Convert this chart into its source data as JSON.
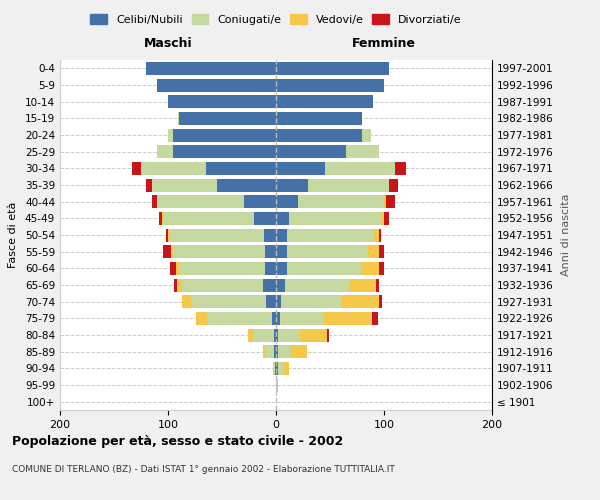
{
  "age_groups": [
    "100+",
    "95-99",
    "90-94",
    "85-89",
    "80-84",
    "75-79",
    "70-74",
    "65-69",
    "60-64",
    "55-59",
    "50-54",
    "45-49",
    "40-44",
    "35-39",
    "30-34",
    "25-29",
    "20-24",
    "15-19",
    "10-14",
    "5-9",
    "0-4"
  ],
  "birth_years": [
    "≤ 1901",
    "1902-1906",
    "1907-1911",
    "1912-1916",
    "1917-1921",
    "1922-1926",
    "1927-1931",
    "1932-1936",
    "1937-1941",
    "1942-1946",
    "1947-1951",
    "1952-1956",
    "1957-1961",
    "1962-1966",
    "1967-1971",
    "1972-1976",
    "1977-1981",
    "1982-1986",
    "1987-1991",
    "1992-1996",
    "1997-2001"
  ],
  "males": {
    "celibi": [
      0,
      0,
      1,
      2,
      2,
      4,
      9,
      12,
      10,
      10,
      11,
      20,
      30,
      55,
      65,
      95,
      95,
      90,
      100,
      110,
      120
    ],
    "coniugati": [
      0,
      0,
      2,
      8,
      18,
      60,
      70,
      75,
      80,
      85,
      88,
      85,
      80,
      60,
      60,
      15,
      5,
      1,
      0,
      0,
      0
    ],
    "vedovi": [
      0,
      0,
      0,
      2,
      6,
      10,
      8,
      5,
      3,
      2,
      1,
      1,
      0,
      0,
      0,
      0,
      0,
      0,
      0,
      0,
      0
    ],
    "divorziati": [
      0,
      0,
      0,
      0,
      0,
      0,
      0,
      2,
      5,
      8,
      2,
      2,
      5,
      5,
      8,
      0,
      0,
      0,
      0,
      0,
      0
    ]
  },
  "females": {
    "nubili": [
      0,
      0,
      2,
      2,
      2,
      4,
      5,
      8,
      10,
      10,
      10,
      12,
      20,
      30,
      45,
      65,
      80,
      80,
      90,
      100,
      105
    ],
    "coniugate": [
      0,
      1,
      5,
      12,
      20,
      40,
      55,
      60,
      70,
      75,
      80,
      85,
      80,
      75,
      65,
      30,
      8,
      0,
      0,
      0,
      0
    ],
    "vedove": [
      0,
      1,
      5,
      15,
      25,
      45,
      35,
      25,
      15,
      10,
      5,
      3,
      2,
      0,
      0,
      0,
      0,
      0,
      0,
      0,
      0
    ],
    "divorziate": [
      0,
      0,
      0,
      0,
      2,
      5,
      3,
      2,
      5,
      5,
      2,
      5,
      8,
      8,
      10,
      0,
      0,
      0,
      0,
      0,
      0
    ]
  },
  "colors": {
    "celibi": "#4472a8",
    "coniugati": "#c5d8a0",
    "vedovi": "#f5c84a",
    "divorziati": "#c8151b"
  },
  "xlim": [
    -200,
    200
  ],
  "xticks": [
    -200,
    -100,
    0,
    100,
    200
  ],
  "xticklabels": [
    "200",
    "100",
    "0",
    "100",
    "200"
  ],
  "title": "Popolazione per età, sesso e stato civile - 2002",
  "subtitle": "COMUNE DI TERLANO (BZ) - Dati ISTAT 1° gennaio 2002 - Elaborazione TUTTITALIA.IT",
  "ylabel_left": "Fasce di età",
  "ylabel_right": "Anni di nascita",
  "label_maschi": "Maschi",
  "label_femmine": "Femmine",
  "legend_labels": [
    "Celibi/Nubili",
    "Coniugati/e",
    "Vedovi/e",
    "Divorziati/e"
  ],
  "bg_color": "#f0f0f0",
  "plot_bg": "#ffffff",
  "bar_height": 0.78
}
